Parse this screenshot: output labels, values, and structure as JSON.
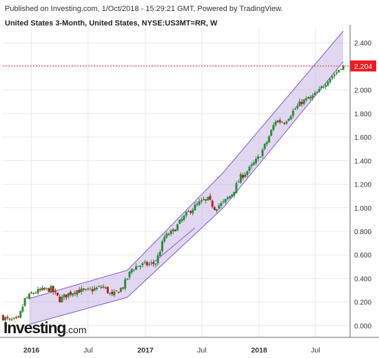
{
  "header": {
    "published": "Published on Investing.com, 1/Oct/2018 - 15:29:21 GMT, Powered by TradingView.",
    "symbol": "United States 3-Month, United States, NYSE:US3MT=RR, W"
  },
  "logo": {
    "main": "Investing",
    "tld": ".com"
  },
  "colors": {
    "up": "#2e8b3a",
    "down": "#b22222",
    "channel_fill": "#c9b7e6",
    "channel_line": "#8a63c9",
    "price_line": "#ff3333",
    "grid": "#e8e8e8",
    "axis": "#666666"
  },
  "chart_data": {
    "type": "candlestick",
    "title": "",
    "xlabel": "",
    "ylabel": "",
    "ylim": [
      -0.1,
      2.53
    ],
    "xlim": [
      "2015-10-01",
      "2018-10-20"
    ],
    "yticks": [
      "2.400",
      "2.200",
      "2.000",
      "1.800",
      "1.600",
      "1.400",
      "1.200",
      "1.000",
      "0.800",
      "0.600",
      "0.400",
      "0.200",
      "0.000"
    ],
    "xticks": [
      {
        "label": "2016",
        "date": "2016-01-01"
      },
      {
        "label": "Jul",
        "date": "2016-07-01"
      },
      {
        "label": "2017",
        "date": "2017-01-01"
      },
      {
        "label": "Jul",
        "date": "2017-07-01"
      },
      {
        "label": "2018",
        "date": "2018-01-01"
      },
      {
        "label": "Jul",
        "date": "2018-07-01"
      }
    ],
    "last_price": "2.204",
    "anchors": [
      [
        "2015-10-02",
        0.08
      ],
      [
        "2015-10-30",
        0.04
      ],
      [
        "2015-11-27",
        0.05
      ],
      [
        "2015-12-18",
        0.22
      ],
      [
        "2016-01-15",
        0.28
      ],
      [
        "2016-02-12",
        0.3
      ],
      [
        "2016-03-11",
        0.31
      ],
      [
        "2016-04-08",
        0.22
      ],
      [
        "2016-05-06",
        0.27
      ],
      [
        "2016-06-03",
        0.3
      ],
      [
        "2016-07-01",
        0.29
      ],
      [
        "2016-07-29",
        0.31
      ],
      [
        "2016-08-26",
        0.33
      ],
      [
        "2016-09-23",
        0.25
      ],
      [
        "2016-10-28",
        0.33
      ],
      [
        "2016-11-25",
        0.48
      ],
      [
        "2016-12-16",
        0.51
      ],
      [
        "2017-01-13",
        0.52
      ],
      [
        "2017-02-10",
        0.53
      ],
      [
        "2017-03-10",
        0.75
      ],
      [
        "2017-04-07",
        0.8
      ],
      [
        "2017-05-05",
        0.9
      ],
      [
        "2017-06-02",
        0.98
      ],
      [
        "2017-06-30",
        1.04
      ],
      [
        "2017-07-28",
        1.07
      ],
      [
        "2017-08-18",
        1.0
      ],
      [
        "2017-09-15",
        1.04
      ],
      [
        "2017-10-13",
        1.12
      ],
      [
        "2017-11-10",
        1.26
      ],
      [
        "2017-12-08",
        1.33
      ],
      [
        "2018-01-05",
        1.42
      ],
      [
        "2018-02-02",
        1.56
      ],
      [
        "2018-03-02",
        1.74
      ],
      [
        "2018-03-30",
        1.73
      ],
      [
        "2018-04-27",
        1.82
      ],
      [
        "2018-05-25",
        1.9
      ],
      [
        "2018-06-22",
        1.93
      ],
      [
        "2018-07-20",
        1.99
      ],
      [
        "2018-08-17",
        2.09
      ],
      [
        "2018-09-14",
        2.15
      ],
      [
        "2018-09-28",
        2.2
      ]
    ],
    "channels": [
      {
        "segment": "2015-2016",
        "lower": [
          [
            "2015-12-25",
            0.01
          ],
          [
            "2016-11-04",
            0.24
          ]
        ],
        "upper": [
          [
            "2015-12-25",
            0.23
          ],
          [
            "2016-11-04",
            0.47
          ]
        ]
      },
      {
        "segment": "2016-2018",
        "lower": [
          [
            "2016-11-04",
            0.24
          ],
          [
            "2017-09-08",
            1.0
          ],
          [
            "2018-09-28",
            2.24
          ]
        ],
        "upper": [
          [
            "2016-11-04",
            0.47
          ],
          [
            "2017-09-08",
            1.3
          ],
          [
            "2018-09-28",
            2.5
          ]
        ]
      }
    ],
    "extra_lines": [
      {
        "from": [
          "2017-01-20",
          0.52
        ],
        "to": [
          "2017-06-09",
          0.83
        ]
      }
    ]
  }
}
